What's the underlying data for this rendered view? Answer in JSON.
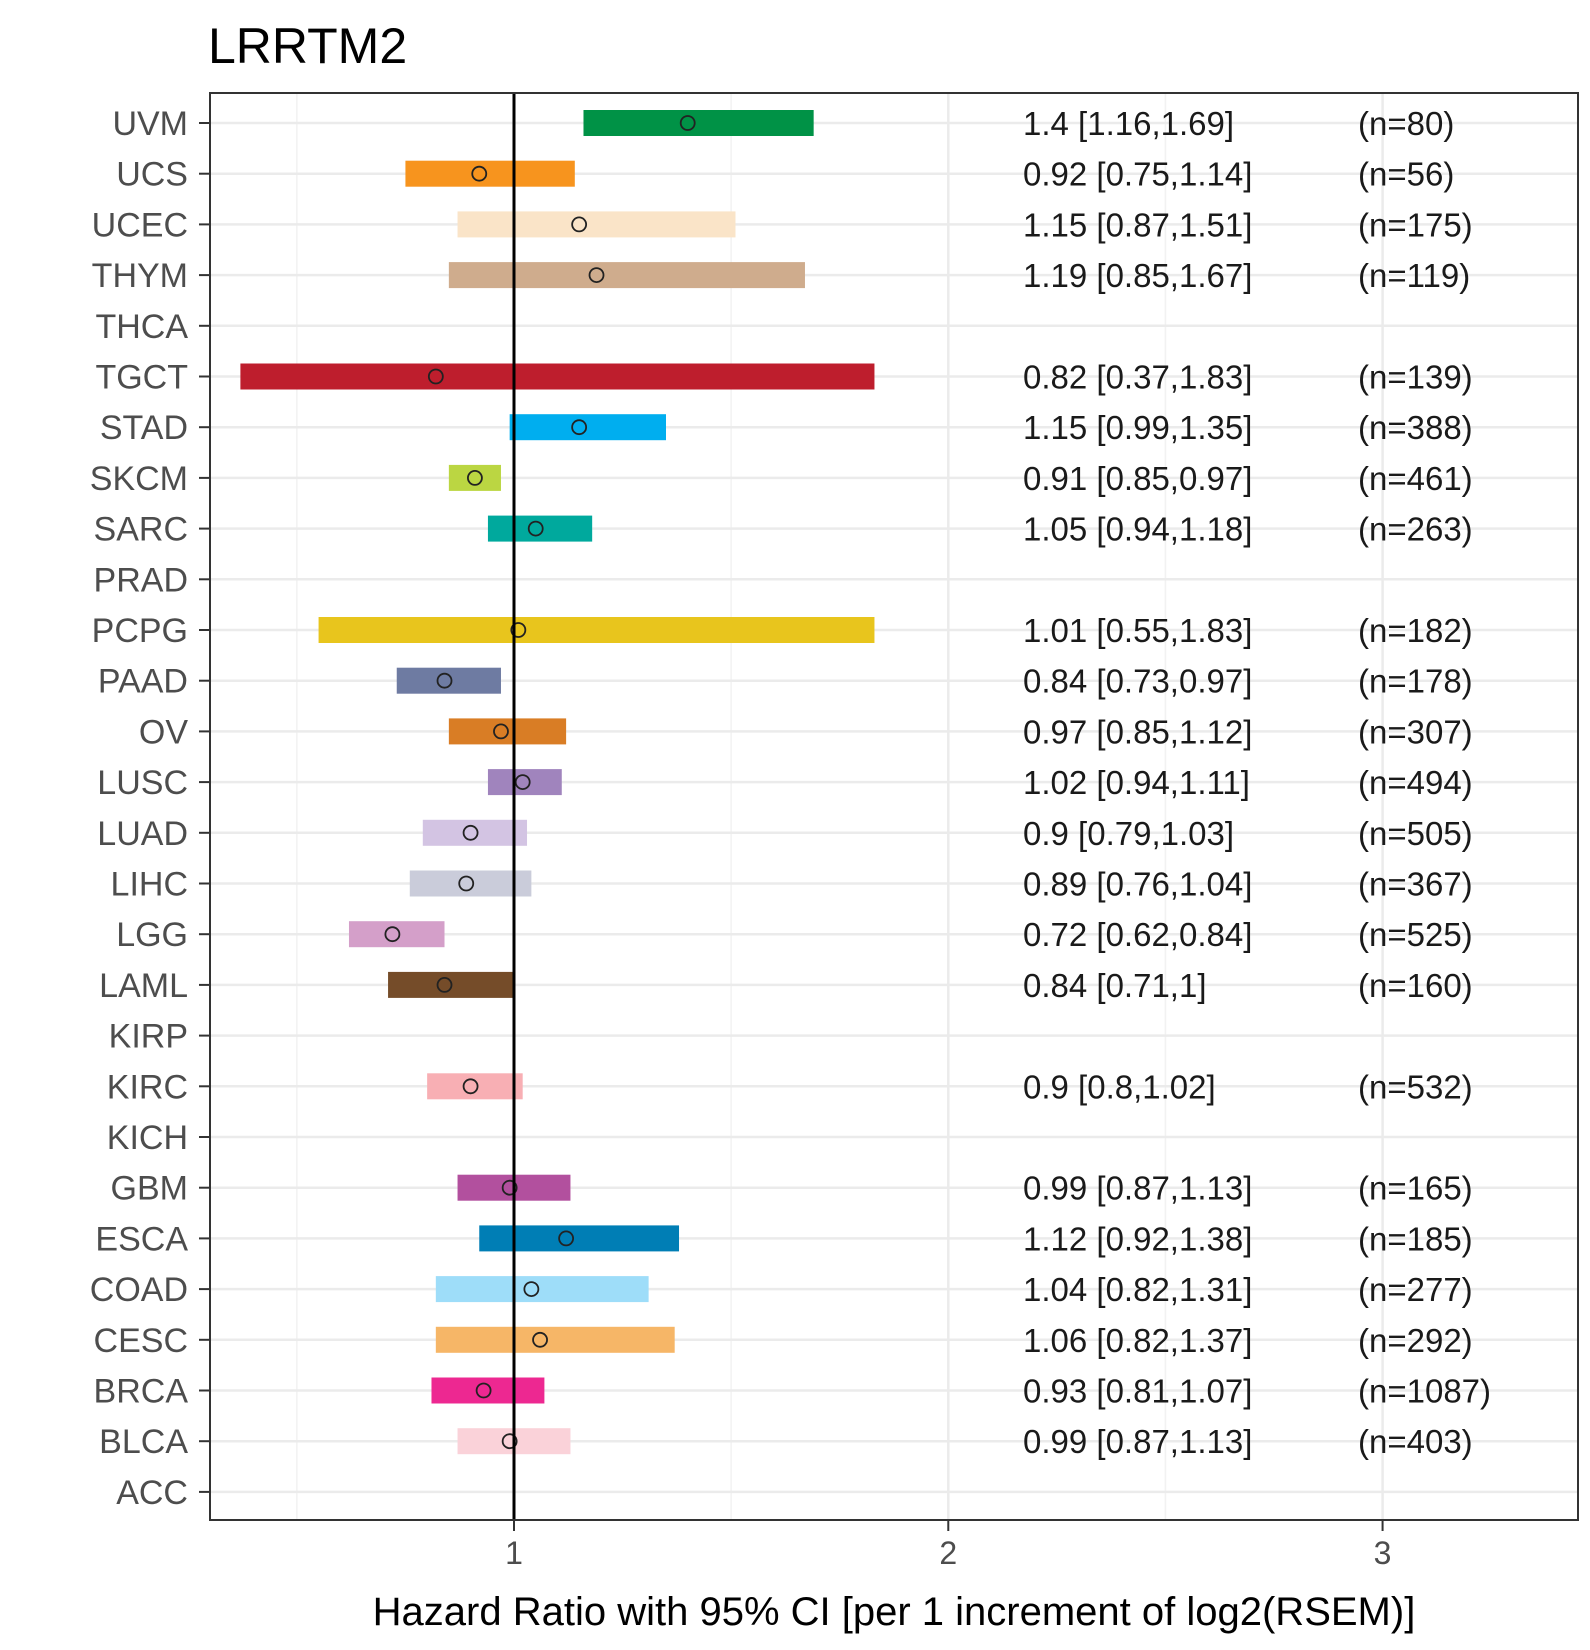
{
  "chart_data": {
    "type": "forest",
    "title": "LRRTM2",
    "xlabel": "Hazard Ratio with 95% CI [per 1 increment of log2(RSEM)]",
    "ylabel": "",
    "xlim": [
      0.3,
      3.45
    ],
    "xticks": [
      1,
      2,
      3
    ],
    "xtick_labels": [
      "1",
      "2",
      "3"
    ],
    "reference_line": 1,
    "grid": true,
    "rows": [
      {
        "label": "UVM",
        "hr": 1.4,
        "lo": 1.16,
        "hi": 1.69,
        "ci_text": "1.4 [1.16,1.69]",
        "n_text": "(n=80)",
        "color": "#009246"
      },
      {
        "label": "UCS",
        "hr": 0.92,
        "lo": 0.75,
        "hi": 1.14,
        "ci_text": "0.92 [0.75,1.14]",
        "n_text": "(n=56)",
        "color": "#F7941E"
      },
      {
        "label": "UCEC",
        "hr": 1.15,
        "lo": 0.87,
        "hi": 1.51,
        "ci_text": "1.15 [0.87,1.51]",
        "n_text": "(n=175)",
        "color": "#FAE4C8"
      },
      {
        "label": "THYM",
        "hr": 1.19,
        "lo": 0.85,
        "hi": 1.67,
        "ci_text": "1.19 [0.85,1.67]",
        "n_text": "(n=119)",
        "color": "#CFAC8D"
      },
      {
        "label": "THCA",
        "hr": null,
        "lo": null,
        "hi": null,
        "ci_text": "",
        "n_text": "",
        "color": "#F9ED32"
      },
      {
        "label": "TGCT",
        "hr": 0.82,
        "lo": 0.37,
        "hi": 1.83,
        "ci_text": "0.82 [0.37,1.83]",
        "n_text": "(n=139)",
        "color": "#BE1E2D"
      },
      {
        "label": "STAD",
        "hr": 1.15,
        "lo": 0.99,
        "hi": 1.35,
        "ci_text": "1.15 [0.99,1.35]",
        "n_text": "(n=388)",
        "color": "#00AEEF"
      },
      {
        "label": "SKCM",
        "hr": 0.91,
        "lo": 0.85,
        "hi": 0.97,
        "ci_text": "0.91 [0.85,0.97]",
        "n_text": "(n=461)",
        "color": "#BBD642"
      },
      {
        "label": "SARC",
        "hr": 1.05,
        "lo": 0.94,
        "hi": 1.18,
        "ci_text": "1.05 [0.94,1.18]",
        "n_text": "(n=263)",
        "color": "#00A99D"
      },
      {
        "label": "PRAD",
        "hr": null,
        "lo": null,
        "hi": null,
        "ci_text": "",
        "n_text": "",
        "color": "#7E4E9C"
      },
      {
        "label": "PCPG",
        "hr": 1.01,
        "lo": 0.55,
        "hi": 1.83,
        "ci_text": "1.01 [0.55,1.83]",
        "n_text": "(n=182)",
        "color": "#E8C51D"
      },
      {
        "label": "PAAD",
        "hr": 0.84,
        "lo": 0.73,
        "hi": 0.97,
        "ci_text": "0.84 [0.73,0.97]",
        "n_text": "(n=178)",
        "color": "#6E7BA2"
      },
      {
        "label": "OV",
        "hr": 0.97,
        "lo": 0.85,
        "hi": 1.12,
        "ci_text": "0.97 [0.85,1.12]",
        "n_text": "(n=307)",
        "color": "#D97D25"
      },
      {
        "label": "LUSC",
        "hr": 1.02,
        "lo": 0.94,
        "hi": 1.11,
        "ci_text": "1.02 [0.94,1.11]",
        "n_text": "(n=494)",
        "color": "#A084BD"
      },
      {
        "label": "LUAD",
        "hr": 0.9,
        "lo": 0.79,
        "hi": 1.03,
        "ci_text": "0.9 [0.79,1.03]",
        "n_text": "(n=505)",
        "color": "#D3C4E3"
      },
      {
        "label": "LIHC",
        "hr": 0.89,
        "lo": 0.76,
        "hi": 1.04,
        "ci_text": "0.89 [0.76,1.04]",
        "n_text": "(n=367)",
        "color": "#CACCDA"
      },
      {
        "label": "LGG",
        "hr": 0.72,
        "lo": 0.62,
        "hi": 0.84,
        "ci_text": "0.72 [0.62,0.84]",
        "n_text": "(n=525)",
        "color": "#D49FC9"
      },
      {
        "label": "LAML",
        "hr": 0.84,
        "lo": 0.71,
        "hi": 1,
        "ci_text": "0.84 [0.71,1]",
        "n_text": "(n=160)",
        "color": "#754C29"
      },
      {
        "label": "KIRP",
        "hr": null,
        "lo": null,
        "hi": null,
        "ci_text": "",
        "n_text": "",
        "color": "#EA7075"
      },
      {
        "label": "KIRC",
        "hr": 0.9,
        "lo": 0.8,
        "hi": 1.02,
        "ci_text": "0.9 [0.8,1.02]",
        "n_text": "(n=532)",
        "color": "#F8AFB4"
      },
      {
        "label": "KICH",
        "hr": null,
        "lo": null,
        "hi": null,
        "ci_text": "",
        "n_text": "",
        "color": "#ED2891"
      },
      {
        "label": "GBM",
        "hr": 0.99,
        "lo": 0.87,
        "hi": 1.13,
        "ci_text": "0.99 [0.87,1.13]",
        "n_text": "(n=165)",
        "color": "#B2509E"
      },
      {
        "label": "ESCA",
        "hr": 1.12,
        "lo": 0.92,
        "hi": 1.38,
        "ci_text": "1.12 [0.92,1.38]",
        "n_text": "(n=185)",
        "color": "#007EB5"
      },
      {
        "label": "COAD",
        "hr": 1.04,
        "lo": 0.82,
        "hi": 1.31,
        "ci_text": "1.04 [0.82,1.31]",
        "n_text": "(n=277)",
        "color": "#9EDDF9"
      },
      {
        "label": "CESC",
        "hr": 1.06,
        "lo": 0.82,
        "hi": 1.37,
        "ci_text": "1.06 [0.82,1.37]",
        "n_text": "(n=292)",
        "color": "#F6B667"
      },
      {
        "label": "BRCA",
        "hr": 0.93,
        "lo": 0.81,
        "hi": 1.07,
        "ci_text": "0.93 [0.81,1.07]",
        "n_text": "(n=1087)",
        "color": "#ED2891"
      },
      {
        "label": "BLCA",
        "hr": 0.99,
        "lo": 0.87,
        "hi": 1.13,
        "ci_text": "0.99 [0.87,1.13]",
        "n_text": "(n=403)",
        "color": "#FAD2D9"
      },
      {
        "label": "ACC",
        "hr": null,
        "lo": null,
        "hi": null,
        "ci_text": "",
        "n_text": "",
        "color": "#C1A72F"
      }
    ]
  }
}
